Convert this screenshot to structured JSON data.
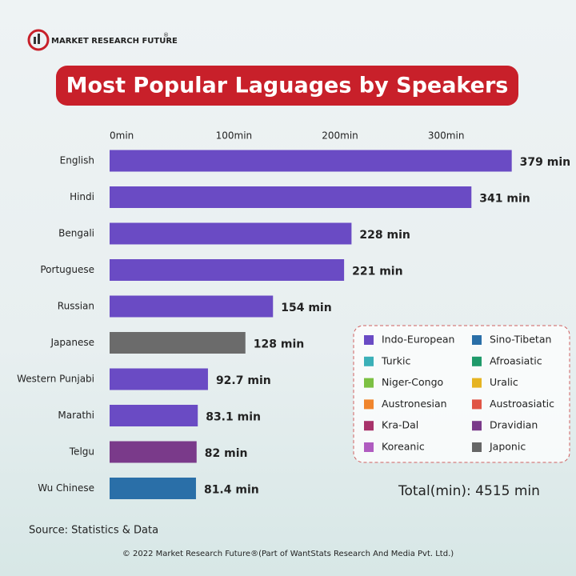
{
  "brand": "MARKET RESEARCH FUTURE",
  "brand_mark": "®",
  "chart_data": {
    "type": "bar",
    "orientation": "horizontal",
    "title": "Most Popular Laguages by Speakers",
    "categories": [
      "English",
      "Hindi",
      "Bengali",
      "Portuguese",
      "Russian",
      "Japanese",
      "Western Punjabi",
      "Marathi",
      "Telgu",
      "Wu Chinese"
    ],
    "values": [
      379,
      341,
      228,
      221,
      154,
      128,
      92.7,
      83.1,
      82,
      81.4
    ],
    "value_labels": [
      "379 min",
      "341 min",
      "228 min",
      "221 min",
      "154 min",
      "128 min",
      "92.7 min",
      "83.1 min",
      "82 min",
      "81.4 min"
    ],
    "colors": [
      "#6a4bc4",
      "#6a4bc4",
      "#6a4bc4",
      "#6a4bc4",
      "#6a4bc4",
      "#6b6b6b",
      "#6a4bc4",
      "#6a4bc4",
      "#7a3a8a",
      "#2a6fa8"
    ],
    "xlim": [
      0,
      380
    ],
    "xticks": [
      {
        "value": 0,
        "label": "0min"
      },
      {
        "value": 100,
        "label": "100min"
      },
      {
        "value": 200,
        "label": "200min"
      },
      {
        "value": 300,
        "label": "300min"
      }
    ],
    "grid": false,
    "legend_entries": [
      {
        "name": "Indo-European",
        "color": "#6a4bc4"
      },
      {
        "name": "Sino-Tibetan",
        "color": "#2a6fa8"
      },
      {
        "name": "Turkic",
        "color": "#3bb0b8"
      },
      {
        "name": "Afroasiatic",
        "color": "#1f9a6a"
      },
      {
        "name": "Niger-Congo",
        "color": "#7cc043"
      },
      {
        "name": "Uralic",
        "color": "#e6b422"
      },
      {
        "name": "Austronesian",
        "color": "#f0852d"
      },
      {
        "name": "Austroasiatic",
        "color": "#e05545"
      },
      {
        "name": "Kra-Dal",
        "color": "#a8326a"
      },
      {
        "name": "Dravidian",
        "color": "#7a3a8a"
      },
      {
        "name": "Koreanic",
        "color": "#b05cc0"
      },
      {
        "name": "Japonic",
        "color": "#666666"
      }
    ],
    "total": "Total(min): 4515 min"
  },
  "source": "Source: Statistics & Data",
  "footer": "© 2022 Market Research Future®(Part of WantStats Research And Media Pvt. Ltd.)"
}
